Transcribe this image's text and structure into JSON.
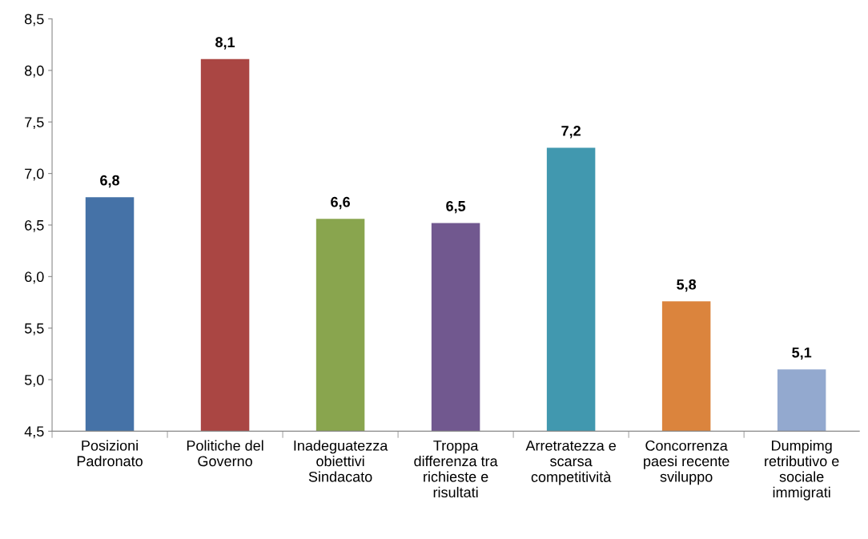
{
  "chart_data": {
    "type": "bar",
    "categories": [
      "Posizioni\nPadronato",
      "Politiche del\nGoverno",
      "Inadeguatezza\nobiettivi\nSindacato",
      "Troppa\ndifferenza tra\nrichieste e\nrisultati",
      "Arretratezza e\nscarsa\ncompetitività",
      "Concorrenza\npaesi recente\nsviluppo",
      "Dumpimg\nretributivo e\nsociale\nimmigrati"
    ],
    "values": [
      6.77,
      8.11,
      6.56,
      6.52,
      7.25,
      5.76,
      5.1
    ],
    "value_labels": [
      "6,8",
      "8,1",
      "6,6",
      "6,5",
      "7,2",
      "5,8",
      "5,1"
    ],
    "colors": [
      "#4572a7",
      "#aa4643",
      "#89a54e",
      "#71588f",
      "#4198af",
      "#db843d",
      "#93a9cf"
    ],
    "ylim": [
      4.5,
      8.5
    ],
    "yticks": [
      {
        "value": 4.5,
        "label": "4,5"
      },
      {
        "value": 5.0,
        "label": "5,0"
      },
      {
        "value": 5.5,
        "label": "5,5"
      },
      {
        "value": 6.0,
        "label": "6,0"
      },
      {
        "value": 6.5,
        "label": "6,5"
      },
      {
        "value": 7.0,
        "label": "7,0"
      },
      {
        "value": 7.5,
        "label": "7,5"
      },
      {
        "value": 8.0,
        "label": "8,0"
      },
      {
        "value": 8.5,
        "label": "8,5"
      }
    ],
    "grid": false,
    "legend": false
  }
}
